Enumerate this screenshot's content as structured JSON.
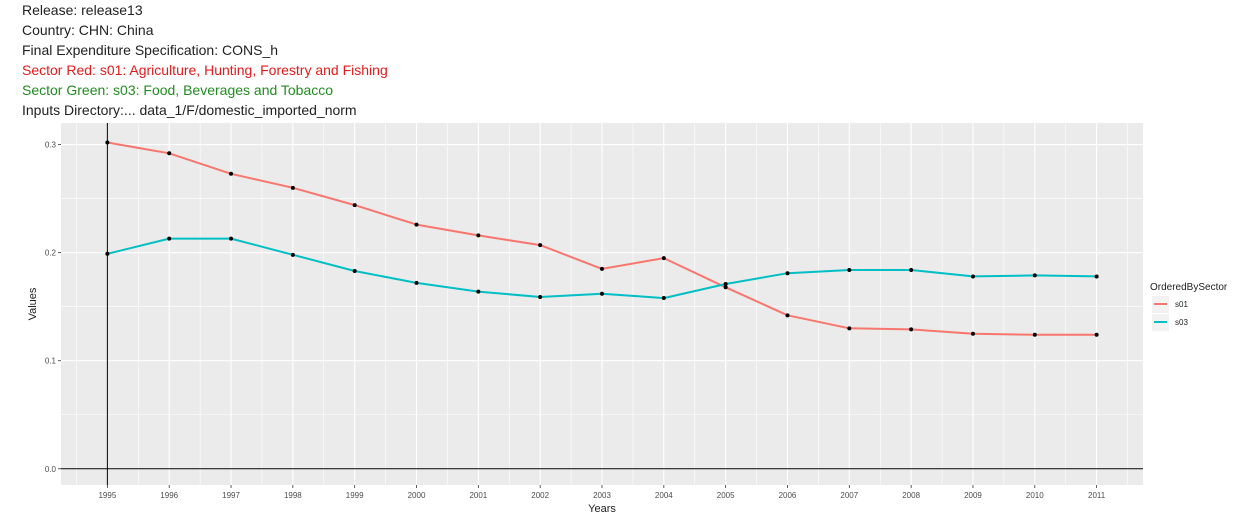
{
  "header": {
    "release": "Release: release13",
    "country": "Country: CHN: China",
    "spec": "Final Expenditure Specification: CONS_h",
    "sector_red": "Sector Red: s01: Agriculture, Hunting, Forestry and Fishing",
    "sector_green": "Sector Green: s03: Food, Beverages and Tobacco",
    "inputs_dir": "Inputs Directory:... data_1/F/domestic_imported_norm"
  },
  "colors": {
    "red_text": "#e41a1c",
    "green_text": "#228b22",
    "s01": "#f8766d",
    "s03": "#00bfc4",
    "panel": "#ebebeb",
    "grid": "#ffffff",
    "points": "#000000"
  },
  "chart_data": {
    "type": "line",
    "xlabel": "Years",
    "ylabel": "Values",
    "x": [
      1995,
      1996,
      1997,
      1998,
      1999,
      2000,
      2001,
      2002,
      2003,
      2004,
      2005,
      2006,
      2007,
      2008,
      2009,
      2010,
      2011
    ],
    "x_tick_labels": [
      "1995",
      "1996",
      "1997",
      "1998",
      "1999",
      "2000",
      "2001",
      "2002",
      "2003",
      "2004",
      "2005",
      "2006",
      "2007",
      "2008",
      "2009",
      "2010",
      "2011"
    ],
    "y_ticks": [
      0.0,
      0.1,
      0.2,
      0.3
    ],
    "y_tick_labels": [
      "0.0",
      "0.1",
      "0.2",
      "0.3"
    ],
    "xlim": [
      1994.25,
      2011.75
    ],
    "ylim": [
      -0.015,
      0.32
    ],
    "grid": true,
    "points": true,
    "legend": {
      "title": "OrderedBySector",
      "position": "right"
    },
    "series": [
      {
        "name": "s01",
        "values": [
          0.302,
          0.292,
          0.273,
          0.26,
          0.244,
          0.226,
          0.216,
          0.207,
          0.185,
          0.195,
          0.168,
          0.142,
          0.13,
          0.129,
          0.125,
          0.124,
          0.124
        ]
      },
      {
        "name": "s03",
        "values": [
          0.199,
          0.213,
          0.213,
          0.198,
          0.183,
          0.172,
          0.164,
          0.159,
          0.162,
          0.158,
          0.171,
          0.181,
          0.184,
          0.184,
          0.178,
          0.179,
          0.178
        ]
      }
    ]
  }
}
